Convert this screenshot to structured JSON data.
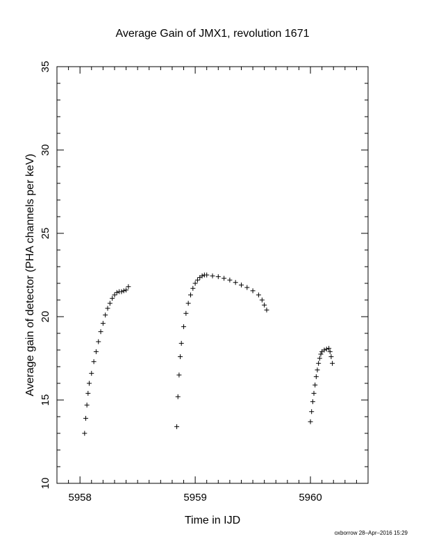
{
  "chart_data": {
    "type": "scatter",
    "title": "Average Gain of JMX1, revolution 1671",
    "xlabel": "Time in IJD",
    "ylabel": "Average gain of detector (PHA channels per keV)",
    "xlim": [
      5957.8,
      5960.5
    ],
    "ylim": [
      10,
      35
    ],
    "xticks": [
      5958,
      5959,
      5960
    ],
    "yticks": [
      10,
      15,
      20,
      25,
      30,
      35
    ],
    "grid": false,
    "marker": "plus",
    "segments": [
      {
        "x": [
          5958.04,
          5958.05,
          5958.06,
          5958.07,
          5958.08,
          5958.1,
          5958.12,
          5958.14,
          5958.16,
          5958.18,
          5958.2,
          5958.22,
          5958.24,
          5958.26,
          5958.28,
          5958.3,
          5958.32,
          5958.34,
          5958.36,
          5958.38,
          5958.4,
          5958.42
        ],
        "y": [
          13.0,
          13.9,
          14.7,
          15.4,
          16.0,
          16.6,
          17.3,
          17.9,
          18.5,
          19.1,
          19.6,
          20.1,
          20.5,
          20.8,
          21.1,
          21.3,
          21.45,
          21.5,
          21.5,
          21.55,
          21.6,
          21.8
        ]
      },
      {
        "x": [
          5958.84,
          5958.85,
          5958.86,
          5958.87,
          5958.88,
          5958.9,
          5958.92,
          5958.94,
          5958.96,
          5958.98,
          5959.0,
          5959.02,
          5959.04,
          5959.06,
          5959.08,
          5959.1,
          5959.15,
          5959.2,
          5959.25,
          5959.3,
          5959.35,
          5959.4,
          5959.45,
          5959.5,
          5959.55,
          5959.58,
          5959.6,
          5959.62
        ],
        "y": [
          13.4,
          15.2,
          16.5,
          17.6,
          18.4,
          19.4,
          20.2,
          20.8,
          21.3,
          21.7,
          22.0,
          22.2,
          22.35,
          22.45,
          22.5,
          22.5,
          22.45,
          22.4,
          22.3,
          22.2,
          22.05,
          21.9,
          21.75,
          21.55,
          21.3,
          21.0,
          20.7,
          20.4
        ]
      },
      {
        "x": [
          5960.0,
          5960.01,
          5960.02,
          5960.03,
          5960.04,
          5960.05,
          5960.06,
          5960.07,
          5960.08,
          5960.09,
          5960.1,
          5960.12,
          5960.14,
          5960.16,
          5960.17,
          5960.18,
          5960.19
        ],
        "y": [
          13.7,
          14.3,
          14.9,
          15.4,
          15.9,
          16.4,
          16.8,
          17.2,
          17.5,
          17.75,
          17.9,
          18.0,
          18.05,
          18.1,
          17.9,
          17.6,
          17.2
        ]
      }
    ],
    "footer": "oxborrow 28–Apr–2016 15:29"
  }
}
